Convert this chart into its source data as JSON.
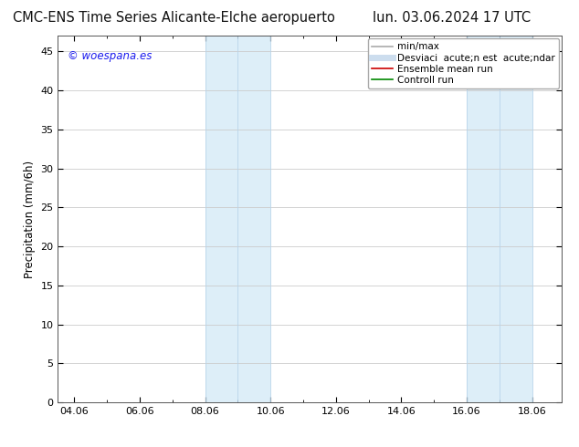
{
  "title_left": "CMC-ENS Time Series Alicante-Elche aeropuerto",
  "title_right": "lun. 03.06.2024 17 UTC",
  "ylabel": "Precipitation (mm/6h)",
  "watermark": "© woespana.es",
  "watermark_color": "#1a1aee",
  "xlim_left": 3.5,
  "xlim_right": 18.9,
  "ylim_bottom": 0,
  "ylim_top": 47,
  "yticks": [
    0,
    5,
    10,
    15,
    20,
    25,
    30,
    35,
    40,
    45
  ],
  "xtick_labels": [
    "04.06",
    "06.06",
    "08.06",
    "10.06",
    "12.06",
    "14.06",
    "16.06",
    "18.06"
  ],
  "xtick_positions": [
    4,
    6,
    8,
    10,
    12,
    14,
    16,
    18
  ],
  "shaded_bands": [
    {
      "xmin": 8.0,
      "xmax": 10.0
    },
    {
      "xmin": 16.0,
      "xmax": 18.0
    }
  ],
  "shaded_color": "#ddeef8",
  "shaded_border": "#b8d4ea",
  "legend_entries": [
    {
      "label": "min/max",
      "color": "#aaaaaa",
      "lw": 1.2
    },
    {
      "label": "Desviaci  acute;n est  acute;ndar",
      "color": "#ccddee",
      "lw": 5
    },
    {
      "label": "Ensemble mean run",
      "color": "#cc0000",
      "lw": 1.2
    },
    {
      "label": "Controll run",
      "color": "#008800",
      "lw": 1.2
    }
  ],
  "bg_color": "#ffffff",
  "grid_color": "#cccccc",
  "title_fontsize": 10.5,
  "tick_fontsize": 8,
  "ylabel_fontsize": 8.5,
  "watermark_fontsize": 8.5,
  "legend_fontsize": 7.5
}
